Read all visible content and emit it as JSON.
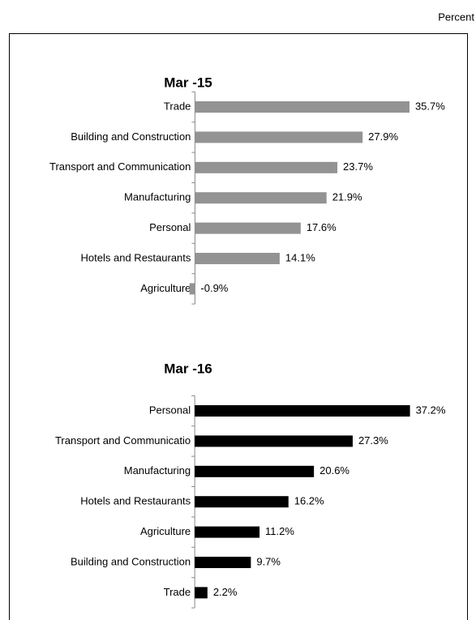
{
  "unit": "Percent",
  "chart_data": [
    {
      "type": "bar",
      "orientation": "horizontal",
      "title": "Mar  -15",
      "categories": [
        "Trade",
        "Building and Construction",
        "Transport and Communication",
        "Manufacturing",
        "Personal",
        "Hotels and Restaurants",
        "Agriculture"
      ],
      "values": [
        35.7,
        27.9,
        23.7,
        21.9,
        17.6,
        14.1,
        -0.9
      ],
      "value_labels": [
        "35.7%",
        "27.9%",
        "23.7%",
        "21.9%",
        "17.6%",
        "14.1%",
        "-0.9%"
      ],
      "color": "#939393",
      "xlim": [
        -1,
        38
      ]
    },
    {
      "type": "bar",
      "orientation": "horizontal",
      "title": "Mar  -16",
      "categories": [
        "Personal",
        "Transport and Communicatio",
        "Manufacturing",
        "Hotels and Restaurants",
        "Agriculture",
        "Building and Construction",
        "Trade"
      ],
      "values": [
        37.2,
        27.3,
        20.6,
        16.2,
        11.2,
        9.7,
        2.2
      ],
      "value_labels": [
        "37.2%",
        "27.3%",
        "20.6%",
        "16.2%",
        "11.2%",
        "9.7%",
        "2.2%"
      ],
      "color": "#000000",
      "xlim": [
        -1,
        39.5
      ]
    }
  ]
}
